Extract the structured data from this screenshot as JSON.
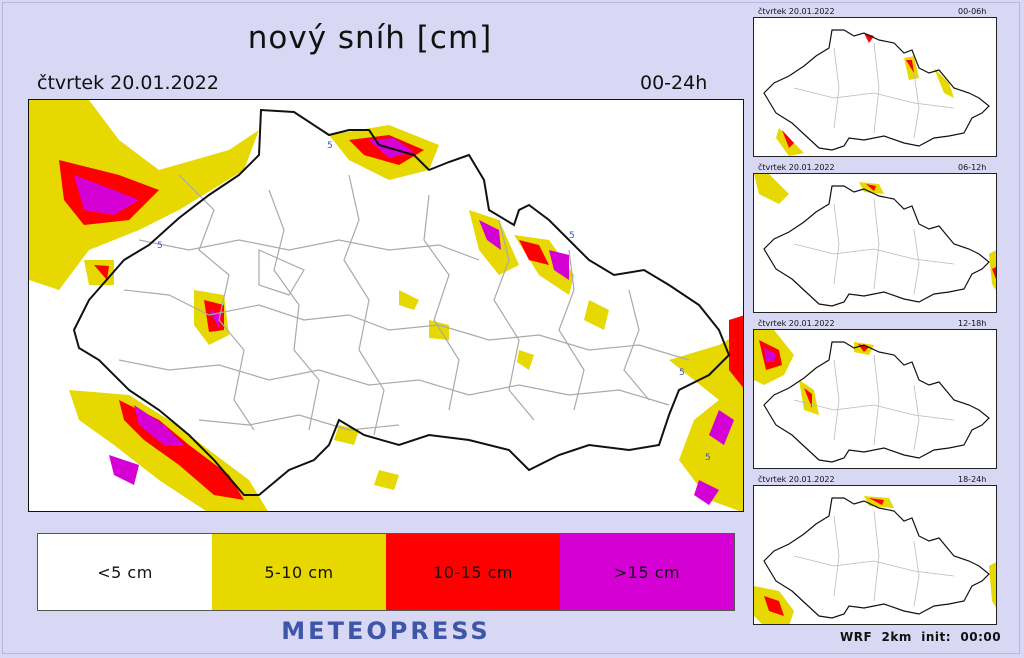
{
  "title": "nový sníh [cm]",
  "date": "čtvrtek 20.01.2022",
  "period": "00-24h",
  "legend": [
    {
      "label": "<5 cm",
      "color": "#ffffff"
    },
    {
      "label": "5-10 cm",
      "color": "#e6d800"
    },
    {
      "label": "10-15 cm",
      "color": "#ff0000"
    },
    {
      "label": ">15 cm",
      "color": "#d400d4"
    }
  ],
  "brand": "METEOPRESS",
  "footer": "WRF  2km  init:  00:00",
  "contour_label": "5",
  "panels": [
    {
      "date": "čtvrtek 20.01.2022",
      "period": "00-06h"
    },
    {
      "date": "čtvrtek 20.01.2022",
      "period": "06-12h"
    },
    {
      "date": "čtvrtek 20.01.2022",
      "period": "12-18h"
    },
    {
      "date": "čtvrtek 20.01.2022",
      "period": "18-24h"
    }
  ]
}
